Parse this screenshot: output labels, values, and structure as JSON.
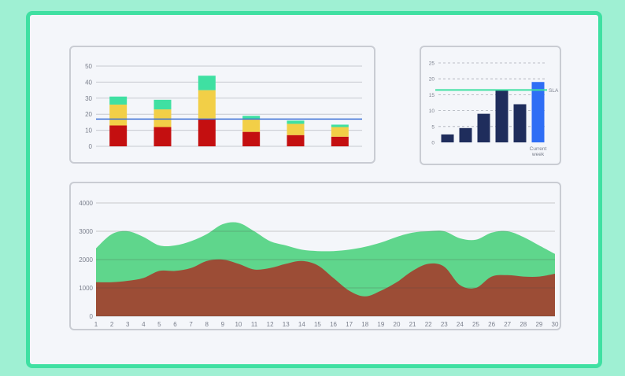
{
  "colors": {
    "frame_border": "#3fe0a2",
    "stack_red": "#c40f10",
    "stack_yellow": "#f2cf47",
    "stack_teal": "#3fe0a2",
    "bar_navy": "#1f2d5c",
    "bar_blue": "#2f6ef5",
    "sla_line": "#3fe0a2",
    "area_green": "#5fd68c",
    "area_brown": "#9c4d36",
    "ref_line_blue": "#3b6fd6"
  },
  "chart_data": [
    {
      "type": "bar",
      "stacked": true,
      "ylim": [
        0,
        50
      ],
      "y_ticks": [
        "0",
        "10",
        "20",
        "30",
        "40",
        "50"
      ],
      "categories": [
        "",
        "",
        "",
        "",
        "",
        ""
      ],
      "series": [
        {
          "values": [
            13,
            12,
            17,
            9,
            7,
            6
          ]
        },
        {
          "values": [
            13,
            11,
            18,
            8,
            7,
            6
          ]
        },
        {
          "values": [
            5,
            6,
            9,
            2,
            2,
            1.5
          ]
        }
      ],
      "reference_line": 17,
      "grid": true
    },
    {
      "type": "bar",
      "ylim": [
        0,
        25
      ],
      "y_ticks": [
        "0",
        "5",
        "10",
        "15",
        "20",
        "25"
      ],
      "values": [
        2.5,
        4.5,
        9,
        16.5,
        12,
        19
      ],
      "highlight_label_lines": [
        "Current",
        "week"
      ],
      "sla_value": 16.5,
      "sla_label": "SLA",
      "grid": "dashed"
    },
    {
      "type": "area",
      "ylim": [
        0,
        4000
      ],
      "y_ticks": [
        "0",
        "1000",
        "2000",
        "3000",
        "4000"
      ],
      "x": [
        1,
        2,
        3,
        4,
        5,
        6,
        7,
        8,
        9,
        10,
        11,
        12,
        13,
        14,
        15,
        16,
        17,
        18,
        19,
        20,
        21,
        22,
        23,
        24,
        25,
        26,
        27,
        28,
        29,
        30
      ],
      "series": [
        {
          "values": [
            2400,
            2900,
            3000,
            2800,
            2500,
            2500,
            2650,
            2900,
            3250,
            3300,
            3000,
            2650,
            2500,
            2350,
            2300,
            2300,
            2350,
            2450,
            2600,
            2800,
            2950,
            3000,
            3000,
            2750,
            2700,
            2950,
            3000,
            2800,
            2500,
            2200
          ]
        },
        {
          "values": [
            1200,
            1200,
            1250,
            1350,
            1600,
            1600,
            1700,
            1950,
            2000,
            1850,
            1650,
            1700,
            1850,
            1950,
            1800,
            1350,
            900,
            700,
            900,
            1200,
            1600,
            1850,
            1750,
            1100,
            1000,
            1400,
            1450,
            1400,
            1400,
            1500
          ]
        }
      ],
      "grid": true
    }
  ]
}
